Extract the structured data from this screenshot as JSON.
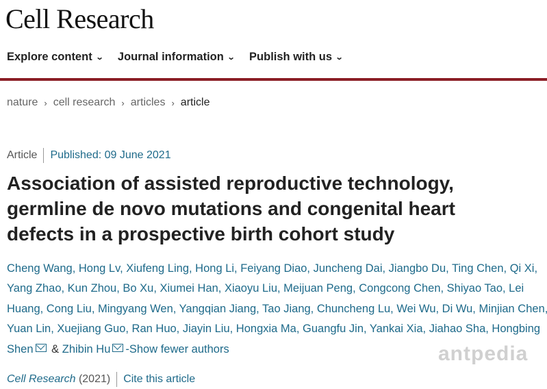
{
  "header": {
    "brand": "Cell Research"
  },
  "nav": {
    "items": [
      {
        "label": "Explore content"
      },
      {
        "label": "Journal information"
      },
      {
        "label": "Publish with us"
      }
    ]
  },
  "breadcrumb": [
    "nature",
    "cell research",
    "articles",
    "article"
  ],
  "article": {
    "type": "Article",
    "published": "Published: 09 June 2021",
    "title_lines": [
      "Association of assisted reproductive technology,",
      "germline de novo mutations and congenital heart",
      "defects in a prospective birth cohort study"
    ],
    "author_lines": [
      "Cheng Wang, Hong Lv, Xiufeng Ling, Hong Li, Feiyang Diao, Juncheng Dai, Jiangbo Du, Ting Chen, Qi Xi,",
      "Yang Zhao, Kun Zhou, Bo Xu, Xiumei Han, Xiaoyu Liu, Meijuan Peng, Congcong Chen, Shiyao Tao, Lei",
      "Huang, Cong Liu, Mingyang Wen, Yangqian Jiang, Tao Jiang, Chuncheng Lu, Wei Wu, Di Wu, Minjian Chen,",
      "Yuan Lin, Xuejiang Guo, Ran Huo, Jiayin Liu, Hongxia Ma, Guangfu Jin, Yankai Xia, Jiahao Sha, Hongbing"
    ],
    "last_author_a": "Shen",
    "ampersand": "&",
    "last_author_b": "Zhibin Hu",
    "show_fewer": "-Show fewer authors",
    "journal": "Cell Research",
    "year": "(2021)",
    "cite": "Cite this article"
  },
  "watermark": "antpedia",
  "colors": {
    "accent_rule": "#8b1e26",
    "link": "#1e6a8a"
  }
}
